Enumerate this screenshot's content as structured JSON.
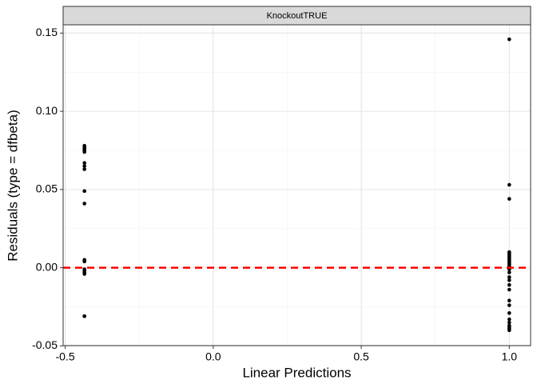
{
  "chart_data": {
    "type": "scatter",
    "facet": "KnockoutTRUE",
    "xlabel": "Linear Predictions",
    "ylabel": "Residuals (type = dfbeta)",
    "x": [
      -0.435,
      -0.435,
      -0.435,
      -0.435,
      -0.435,
      -0.435,
      -0.435,
      -0.435,
      -0.435,
      -0.435,
      -0.435,
      -0.435,
      -0.435,
      -0.435,
      -0.435,
      -0.435,
      -0.435,
      -0.435,
      1.0,
      1.0,
      1.0,
      1.0,
      1.0,
      1.0,
      1.0,
      1.0,
      1.0,
      1.0,
      1.0,
      1.0,
      1.0,
      1.0,
      1.0,
      1.0,
      1.0,
      1.0,
      1.0,
      1.0,
      1.0,
      1.0,
      1.0,
      1.0,
      1.0,
      1.0,
      1.0,
      1.0,
      1.0
    ],
    "values": [
      0.078,
      0.077,
      0.076,
      0.075,
      0.074,
      0.067,
      0.065,
      0.063,
      0.049,
      0.041,
      0.005,
      0.004,
      -0.001,
      -0.002,
      -0.003,
      -0.004,
      -0.031,
      -0.031,
      0.146,
      0.053,
      0.044,
      0.01,
      0.009,
      0.008,
      0.007,
      0.006,
      0.005,
      0.004,
      0.003,
      0.002,
      0.001,
      0.0,
      -0.001,
      -0.003,
      -0.006,
      -0.008,
      -0.011,
      -0.014,
      -0.021,
      -0.024,
      -0.029,
      -0.033,
      -0.035,
      -0.037,
      -0.038,
      -0.039,
      -0.04
    ],
    "color": "#000000",
    "xlim": [
      -0.507,
      1.072
    ],
    "ylim": [
      -0.0498,
      0.1553
    ],
    "xticks": [
      -0.5,
      {
        "value": 0,
        "label": "0.0"
      },
      0.5,
      {
        "value": 1,
        "label": "1.0"
      }
    ],
    "yticks": [
      -0.05,
      {
        "value": 0,
        "label": "0.00"
      },
      0.05,
      {
        "value": 0.1,
        "label": "0.10"
      },
      0.15
    ],
    "x_minor_grid": [
      -0.25,
      0.25,
      0.75
    ],
    "y_minor_grid": [
      -0.025,
      0.025,
      0.075,
      0.125
    ],
    "hline": 0,
    "hline_color": "#ff0000",
    "grid": true
  }
}
